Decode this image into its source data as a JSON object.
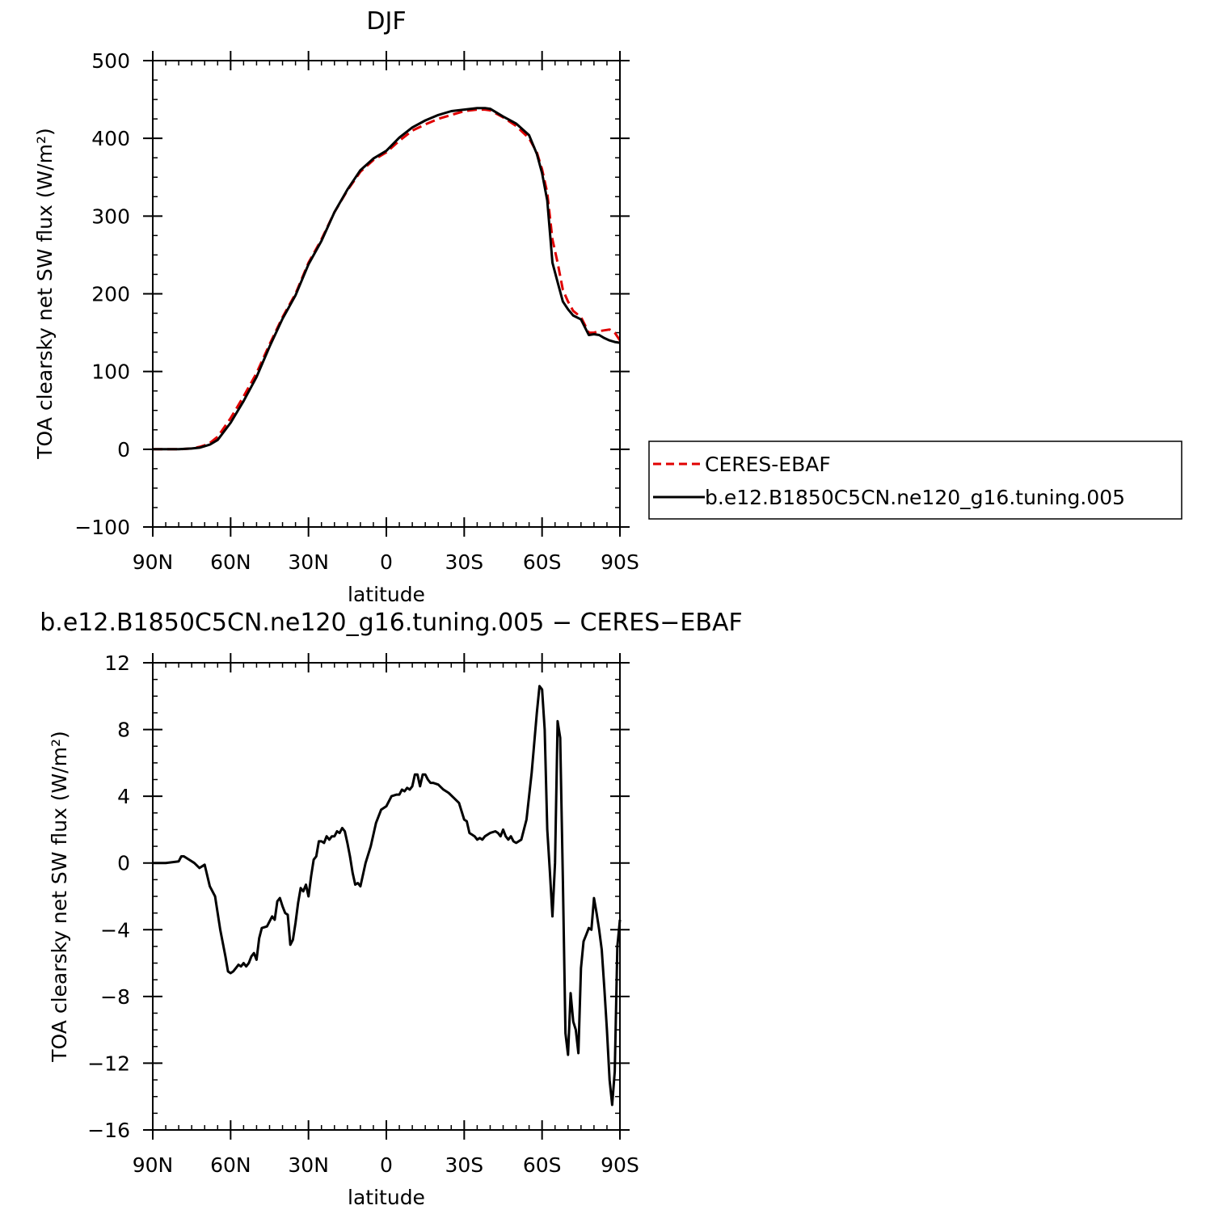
{
  "chart_data": [
    {
      "type": "line",
      "title": "DJF",
      "xlabel": "latitude",
      "ylabel": "TOA clearsky net SW flux (W/m²)",
      "x_direction": "north-to-south",
      "xlim": [
        90,
        -90
      ],
      "ylim": [
        -100,
        500
      ],
      "xticks": [
        {
          "value": 90,
          "label": "90N"
        },
        {
          "value": 60,
          "label": "60N"
        },
        {
          "value": 30,
          "label": "30N"
        },
        {
          "value": 0,
          "label": "0"
        },
        {
          "value": -30,
          "label": "30S"
        },
        {
          "value": -60,
          "label": "60S"
        },
        {
          "value": -90,
          "label": "90S"
        }
      ],
      "yticks": [
        {
          "value": 500,
          "label": "500"
        },
        {
          "value": 400,
          "label": "400"
        },
        {
          "value": 300,
          "label": "300"
        },
        {
          "value": 200,
          "label": "200"
        },
        {
          "value": 100,
          "label": "100"
        },
        {
          "value": 0,
          "label": "0"
        },
        {
          "value": -100,
          "label": "−100"
        }
      ],
      "legend_position": "right",
      "series": [
        {
          "name": "CERES-EBAF",
          "color": "#e00000",
          "dash": true,
          "x": [
            90,
            85,
            80,
            75,
            72,
            70,
            68,
            65,
            60,
            55,
            50,
            45,
            40,
            35,
            30,
            25,
            20,
            15,
            10,
            5,
            0,
            -5,
            -10,
            -15,
            -20,
            -25,
            -30,
            -35,
            -38,
            -40,
            -45,
            -50,
            -55,
            -58,
            -60,
            -62,
            -64,
            -66,
            -68,
            -70,
            -72,
            -75,
            -78,
            -80,
            -82,
            -84,
            -86,
            -88,
            -90
          ],
          "y": [
            0,
            0,
            0,
            1,
            3,
            5,
            8,
            16,
            40,
            68,
            98,
            135,
            170,
            200,
            240,
            270,
            305,
            333,
            357,
            372,
            382,
            397,
            410,
            418,
            425,
            430,
            435,
            437,
            437,
            436,
            427,
            416,
            400,
            382,
            360,
            330,
            270,
            240,
            205,
            190,
            178,
            170,
            150,
            150,
            152,
            153,
            154,
            150,
            140
          ]
        },
        {
          "name": "b.e12.B1850C5CN.ne120_g16.tuning.005",
          "color": "#000000",
          "dash": false,
          "x": [
            90,
            85,
            80,
            75,
            72,
            70,
            68,
            65,
            60,
            55,
            50,
            45,
            40,
            35,
            30,
            25,
            20,
            15,
            10,
            5,
            0,
            -5,
            -10,
            -15,
            -20,
            -25,
            -30,
            -35,
            -38,
            -40,
            -45,
            -50,
            -55,
            -58,
            -60,
            -62,
            -64,
            -66,
            -68,
            -70,
            -72,
            -75,
            -78,
            -80,
            -82,
            -84,
            -86,
            -88,
            -90
          ],
          "y": [
            0,
            0,
            0,
            1,
            2,
            4,
            6,
            12,
            34,
            62,
            93,
            132,
            168,
            198,
            238,
            268,
            305,
            334,
            359,
            374,
            384,
            401,
            414,
            423,
            430,
            435,
            437,
            439,
            439,
            438,
            428,
            419,
            404,
            380,
            355,
            320,
            240,
            215,
            190,
            180,
            172,
            167,
            147,
            148,
            147,
            143,
            140,
            138,
            137
          ]
        }
      ]
    },
    {
      "type": "line",
      "title": "b.e12.B1850C5CN.ne120_g16.tuning.005 − CERES−EBAF",
      "xlabel": "latitude",
      "ylabel": "TOA clearsky net SW flux (W/m²)",
      "x_direction": "north-to-south",
      "xlim": [
        90,
        -90
      ],
      "ylim": [
        -16,
        12
      ],
      "xticks": [
        {
          "value": 90,
          "label": "90N"
        },
        {
          "value": 60,
          "label": "60N"
        },
        {
          "value": 30,
          "label": "30N"
        },
        {
          "value": 0,
          "label": "0"
        },
        {
          "value": -30,
          "label": "30S"
        },
        {
          "value": -60,
          "label": "60S"
        },
        {
          "value": -90,
          "label": "90S"
        }
      ],
      "yticks": [
        {
          "value": 12,
          "label": "12"
        },
        {
          "value": 8,
          "label": "8"
        },
        {
          "value": 4,
          "label": "4"
        },
        {
          "value": 0,
          "label": "0"
        },
        {
          "value": -4,
          "label": "−4"
        },
        {
          "value": -8,
          "label": "−8"
        },
        {
          "value": -12,
          "label": "−12"
        },
        {
          "value": -16,
          "label": "−16"
        }
      ],
      "series": [
        {
          "color": "#000000",
          "dash": false,
          "x": [
            90,
            85,
            80,
            79,
            78,
            76,
            74,
            72,
            70,
            68,
            66,
            64,
            62,
            61,
            60,
            59,
            58,
            57,
            56,
            55,
            54,
            53,
            52,
            51,
            50,
            49,
            48,
            46,
            44,
            43,
            42,
            41,
            40,
            39,
            38,
            37,
            36,
            35,
            34,
            33,
            32,
            31,
            30,
            29,
            28,
            27,
            26,
            25,
            24,
            23,
            22,
            21,
            20,
            19,
            18,
            17,
            16,
            15,
            14,
            13,
            12,
            11,
            10,
            9,
            8,
            6,
            4,
            2,
            0,
            -2,
            -4,
            -5,
            -6,
            -7,
            -8,
            -9,
            -10,
            -11,
            -12,
            -13,
            -14,
            -15,
            -16,
            -17,
            -18,
            -20,
            -22,
            -24,
            -26,
            -28,
            -30,
            -31,
            -32,
            -33,
            -34,
            -35,
            -36,
            -37,
            -38,
            -40,
            -42,
            -43,
            -44,
            -45,
            -46,
            -47,
            -48,
            -49,
            -50,
            -52,
            -54,
            -56,
            -58,
            -59,
            -60,
            -61,
            -62,
            -63,
            -64,
            -65,
            -66,
            -67,
            -68,
            -69,
            -70,
            -71,
            -72,
            -73,
            -74,
            -75,
            -76,
            -77,
            -78,
            -79,
            -80,
            -81,
            -82,
            -83,
            -84,
            -85,
            -86,
            -87,
            -88,
            -89,
            -90
          ],
          "y": [
            0,
            0,
            0.1,
            0.4,
            0.4,
            0.2,
            0,
            -0.3,
            -0.1,
            -1.4,
            -2.0,
            -4.0,
            -5.6,
            -6.5,
            -6.6,
            -6.5,
            -6.3,
            -6.1,
            -6.2,
            -6.0,
            -6.2,
            -6.0,
            -5.6,
            -5.4,
            -5.8,
            -4.5,
            -3.9,
            -3.8,
            -3.2,
            -3.4,
            -2.3,
            -2.1,
            -2.6,
            -3.0,
            -3.1,
            -4.9,
            -4.6,
            -3.6,
            -2.4,
            -1.5,
            -1.7,
            -1.3,
            -2.0,
            -0.8,
            0.2,
            0.4,
            1.3,
            1.3,
            1.2,
            1.6,
            1.4,
            1.6,
            1.6,
            1.9,
            1.8,
            2.1,
            1.9,
            1.2,
            0.4,
            -0.6,
            -1.3,
            -1.2,
            -1.4,
            -0.7,
            0.0,
            1.0,
            2.4,
            3.2,
            3.4,
            4.0,
            4.1,
            4.1,
            4.4,
            4.3,
            4.5,
            4.4,
            4.6,
            5.3,
            5.3,
            4.6,
            5.3,
            5.3,
            5.0,
            4.8,
            4.8,
            4.7,
            4.4,
            4.2,
            3.9,
            3.6,
            2.6,
            2.5,
            1.8,
            1.7,
            1.6,
            1.4,
            1.5,
            1.4,
            1.6,
            1.8,
            1.9,
            1.8,
            1.6,
            2.0,
            1.6,
            1.4,
            1.6,
            1.3,
            1.2,
            1.4,
            2.6,
            5.4,
            9.0,
            10.6,
            10.4,
            8.0,
            2.0,
            -0.5,
            -3.2,
            0.0,
            8.5,
            7.5,
            -1.0,
            -10.2,
            -11.5,
            -7.8,
            -9.5,
            -10.0,
            -11.4,
            -6.3,
            -4.7,
            -4.3,
            -3.9,
            -4.0,
            -2.1,
            -3.0,
            -4.0,
            -5.2,
            -7.5,
            -10.0,
            -13.0,
            -14.5,
            -12.5,
            -5.0,
            -3.4
          ]
        }
      ]
    }
  ]
}
